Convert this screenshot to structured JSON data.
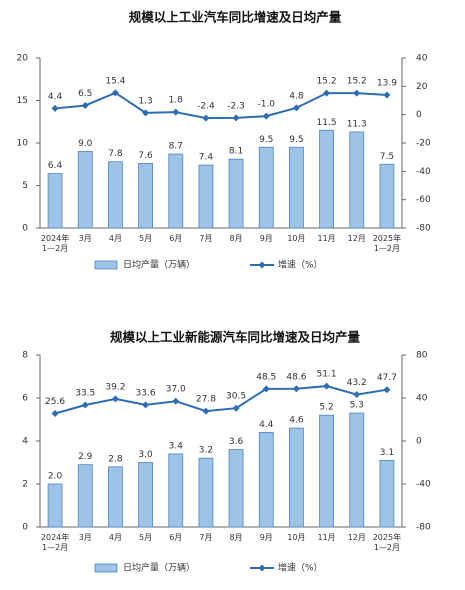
{
  "chart_data": [
    {
      "type": "bar",
      "title": "规模以上工业汽车同比增速及日均产量",
      "categories": [
        "2024年\n1—2月",
        "3月",
        "4月",
        "5月",
        "6月",
        "7月",
        "8月",
        "9月",
        "10月",
        "11月",
        "12月",
        "2025年\n1—2月"
      ],
      "ylim": [
        0,
        20
      ],
      "yticks": [
        0,
        5,
        10,
        15,
        20
      ],
      "y2lim": [
        -80,
        40
      ],
      "y2ticks": [
        -80,
        -60,
        -40,
        -20,
        0,
        20,
        40
      ],
      "series": [
        {
          "name": "日均产量（万辆）",
          "type": "bar",
          "color": "#9dc3e6",
          "values": [
            6.4,
            9.0,
            7.8,
            7.6,
            8.7,
            7.4,
            8.1,
            9.5,
            9.5,
            11.5,
            11.3,
            7.5
          ],
          "value_labels": [
            "6.4",
            "9.0",
            "7.8",
            "7.6",
            "8.7",
            "7.4",
            "8.1",
            "9.5",
            "9.5",
            "11.5",
            "11.3",
            "7.5"
          ]
        },
        {
          "name": "增速（%）",
          "type": "line",
          "axis": "y2",
          "color": "#2e6db4",
          "values": [
            4.4,
            6.5,
            15.4,
            1.3,
            1.8,
            -2.4,
            -2.3,
            -1.0,
            4.8,
            15.2,
            15.2,
            13.9
          ],
          "value_labels": [
            "4.4",
            "6.5",
            "15.4",
            "1.3",
            "1.8",
            "-2.4",
            "-2.3",
            "-1.0",
            "4.8",
            "15.2",
            "15.2",
            "13.9"
          ]
        }
      ]
    },
    {
      "type": "bar",
      "title": "规模以上工业新能源汽车同比增速及日均产量",
      "categories": [
        "2024年\n1—2月",
        "3月",
        "4月",
        "5月",
        "6月",
        "7月",
        "8月",
        "9月",
        "10月",
        "11月",
        "12月",
        "2025年\n1—2月"
      ],
      "ylim": [
        0,
        8
      ],
      "yticks": [
        0,
        2,
        4,
        6,
        8
      ],
      "y2lim": [
        -80,
        80
      ],
      "y2ticks": [
        -80,
        -40,
        0,
        40,
        80
      ],
      "series": [
        {
          "name": "日均产量（万辆）",
          "type": "bar",
          "color": "#9dc3e6",
          "values": [
            2.0,
            2.9,
            2.8,
            3.0,
            3.4,
            3.2,
            3.6,
            4.4,
            4.6,
            5.2,
            5.3,
            3.1
          ],
          "value_labels": [
            "2.0",
            "2.9",
            "2.8",
            "3.0",
            "3.4",
            "3.2",
            "3.6",
            "4.4",
            "4.6",
            "5.2",
            "5.3",
            "3.1"
          ]
        },
        {
          "name": "增速（%）",
          "type": "line",
          "axis": "y2",
          "color": "#2e6db4",
          "values": [
            25.6,
            33.5,
            39.2,
            33.6,
            37.0,
            27.8,
            30.5,
            48.5,
            48.6,
            51.1,
            43.2,
            47.7
          ],
          "value_labels": [
            "25.6",
            "33.5",
            "39.2",
            "33.6",
            "37.0",
            "27.8",
            "30.5",
            "48.5",
            "48.6",
            "51.1",
            "43.2",
            "47.7"
          ]
        }
      ]
    }
  ]
}
